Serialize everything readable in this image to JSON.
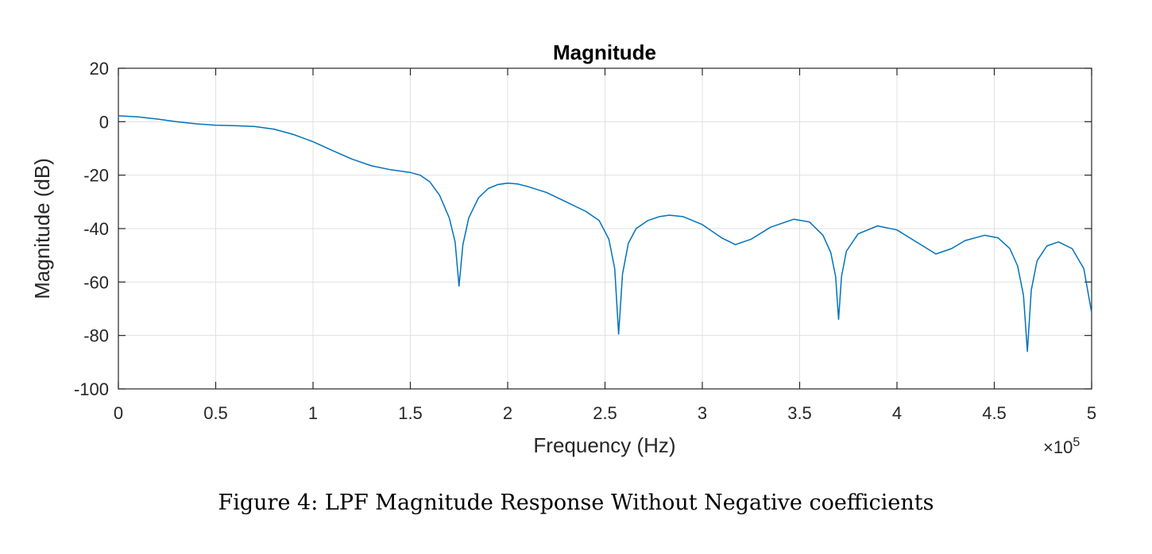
{
  "caption": "Figure 4: LPF Magnitude Response Without Negative coefficients",
  "colors": {
    "line": "#0072BD",
    "grid": "#e0e0e0",
    "axis": "#262626"
  },
  "chart_data": {
    "type": "line",
    "title": "Magnitude",
    "xlabel": "Frequency (Hz)",
    "ylabel": "Magnitude (dB)",
    "x_exponent_label": "×10",
    "x_exponent_power": "5",
    "xlim": [
      0,
      500000
    ],
    "ylim": [
      -100,
      20
    ],
    "x_ticks": [
      0,
      50000,
      100000,
      150000,
      200000,
      250000,
      300000,
      350000,
      400000,
      450000,
      500000
    ],
    "x_tick_labels": [
      "0",
      "0.5",
      "1",
      "1.5",
      "2",
      "2.5",
      "3",
      "3.5",
      "4",
      "4.5",
      "5"
    ],
    "y_ticks": [
      20,
      0,
      -20,
      -40,
      -60,
      -80,
      -100
    ],
    "y_tick_labels": [
      "20",
      "0",
      "-20",
      "-40",
      "-60",
      "-80",
      "-100"
    ],
    "grid": true,
    "series": [
      {
        "points": [
          [
            0,
            2.2
          ],
          [
            10000,
            1.8
          ],
          [
            20000,
            1.0
          ],
          [
            30000,
            0.0
          ],
          [
            40000,
            -0.8
          ],
          [
            50000,
            -1.3
          ],
          [
            60000,
            -1.5
          ],
          [
            70000,
            -1.8
          ],
          [
            80000,
            -2.8
          ],
          [
            90000,
            -4.8
          ],
          [
            100000,
            -7.5
          ],
          [
            110000,
            -10.8
          ],
          [
            120000,
            -14.0
          ],
          [
            130000,
            -16.5
          ],
          [
            140000,
            -18.0
          ],
          [
            150000,
            -19.0
          ],
          [
            155000,
            -20.0
          ],
          [
            160000,
            -22.5
          ],
          [
            165000,
            -27.5
          ],
          [
            170000,
            -36.0
          ],
          [
            173000,
            -45.0
          ],
          [
            175000,
            -61.5
          ],
          [
            177000,
            -46.0
          ],
          [
            180000,
            -36.0
          ],
          [
            185000,
            -28.5
          ],
          [
            190000,
            -25.0
          ],
          [
            195000,
            -23.5
          ],
          [
            200000,
            -23.0
          ],
          [
            205000,
            -23.3
          ],
          [
            210000,
            -24.2
          ],
          [
            220000,
            -26.5
          ],
          [
            230000,
            -30.0
          ],
          [
            240000,
            -33.5
          ],
          [
            247000,
            -37.0
          ],
          [
            252000,
            -44.0
          ],
          [
            255000,
            -55.0
          ],
          [
            257000,
            -79.5
          ],
          [
            259000,
            -57.0
          ],
          [
            262000,
            -45.5
          ],
          [
            266000,
            -40.0
          ],
          [
            272000,
            -37.0
          ],
          [
            278000,
            -35.5
          ],
          [
            283000,
            -35.0
          ],
          [
            290000,
            -35.5
          ],
          [
            300000,
            -38.5
          ],
          [
            310000,
            -43.5
          ],
          [
            317000,
            -46.0
          ],
          [
            325000,
            -44.0
          ],
          [
            335000,
            -39.5
          ],
          [
            347000,
            -36.5
          ],
          [
            355000,
            -37.5
          ],
          [
            362000,
            -42.5
          ],
          [
            366000,
            -49.0
          ],
          [
            368500,
            -58.0
          ],
          [
            370000,
            -74.0
          ],
          [
            371500,
            -58.0
          ],
          [
            374000,
            -48.5
          ],
          [
            380000,
            -42.0
          ],
          [
            390000,
            -39.0
          ],
          [
            400000,
            -40.5
          ],
          [
            410000,
            -45.0
          ],
          [
            420000,
            -49.5
          ],
          [
            428000,
            -47.5
          ],
          [
            435000,
            -44.5
          ],
          [
            445000,
            -42.5
          ],
          [
            452000,
            -43.5
          ],
          [
            458000,
            -47.5
          ],
          [
            462000,
            -54.0
          ],
          [
            465000,
            -65.0
          ],
          [
            467000,
            -86.0
          ],
          [
            469000,
            -63.0
          ],
          [
            472000,
            -52.0
          ],
          [
            477000,
            -46.5
          ],
          [
            483000,
            -45.0
          ],
          [
            490000,
            -47.5
          ],
          [
            496000,
            -55.0
          ],
          [
            500000,
            -71.5
          ]
        ]
      }
    ]
  }
}
